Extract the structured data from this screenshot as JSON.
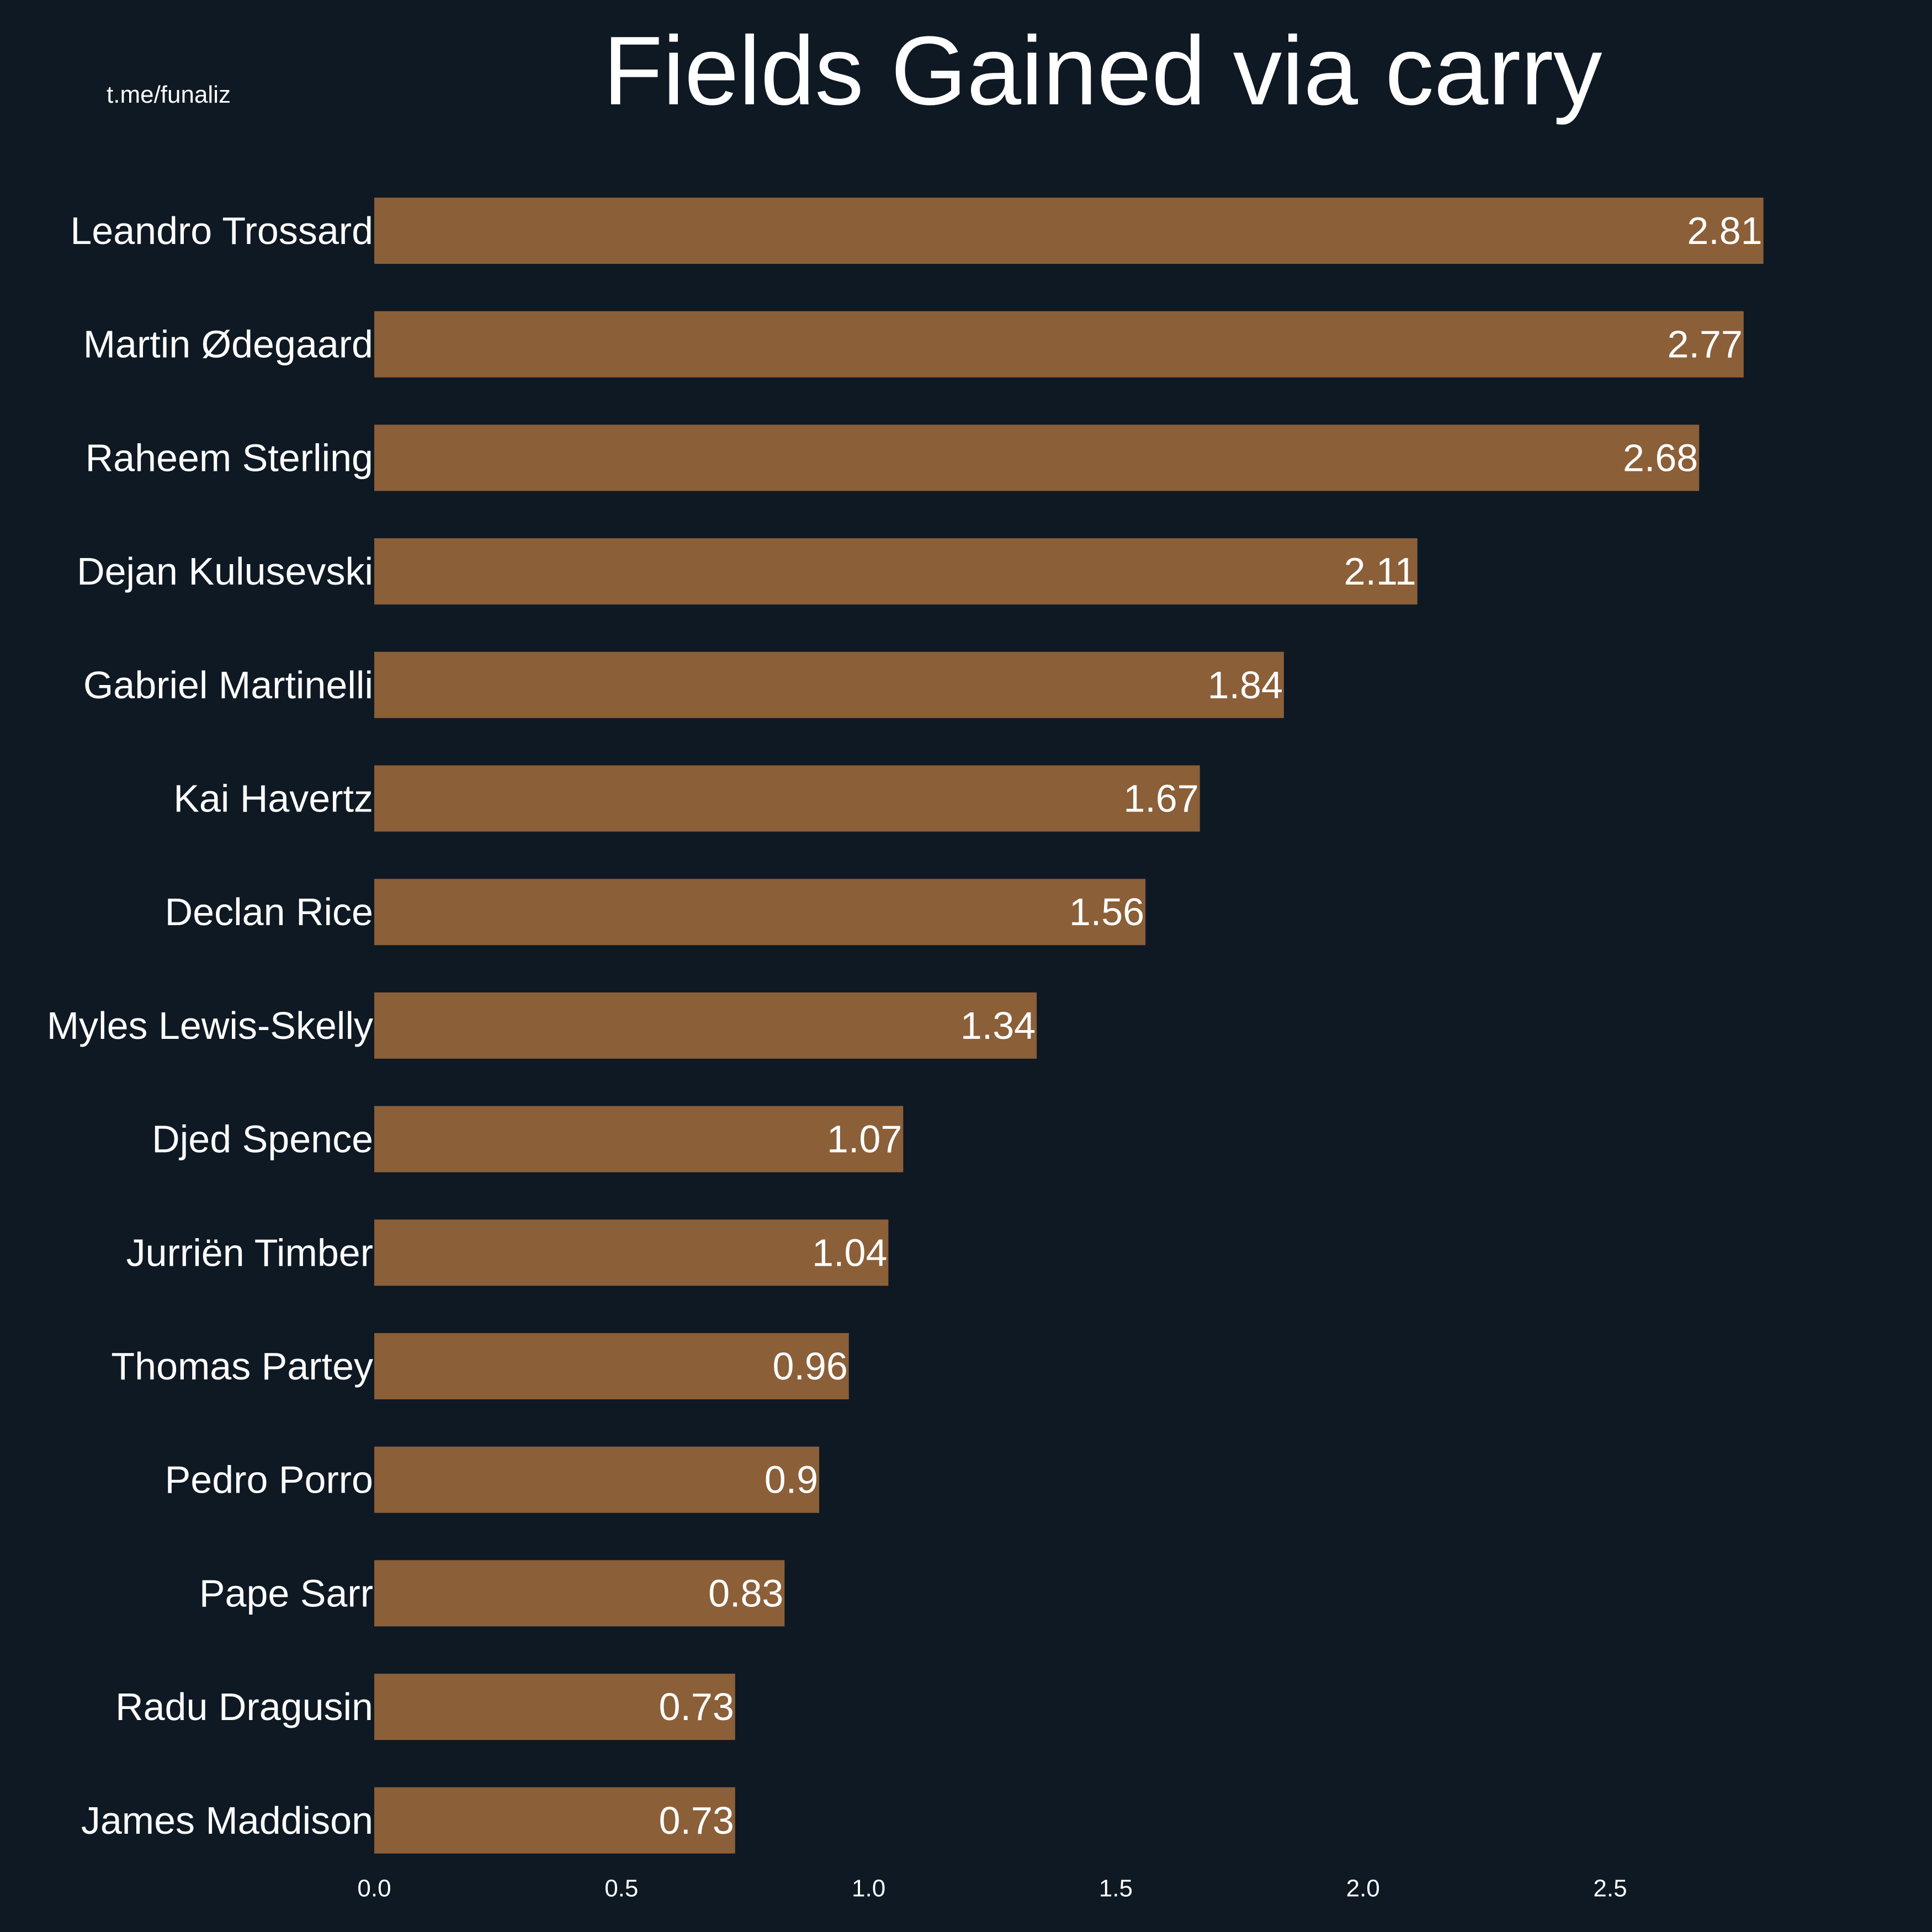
{
  "watermark": "t.me/funaliz",
  "chart_data": {
    "type": "bar",
    "orientation": "horizontal",
    "title": "Fields Gained via carry",
    "xlabel": "",
    "ylabel": "",
    "xlim": [
      0,
      2.95
    ],
    "xticks": [
      "0.0",
      "0.5",
      "1.0",
      "1.5",
      "2.0",
      "2.5"
    ],
    "xtick_values": [
      0,
      0.5,
      1.0,
      1.5,
      2.0,
      2.5
    ],
    "grid": false,
    "bar_color": "#8b5f38",
    "background_color": "#0f1923",
    "text_color": "#ffffff",
    "categories": [
      "Leandro Trossard",
      "Martin Ødegaard",
      "Raheem Sterling",
      "Dejan Kulusevski",
      "Gabriel Martinelli",
      "Kai Havertz",
      "Declan Rice",
      "Myles Lewis-Skelly",
      "Djed Spence",
      "Jurriën Timber",
      "Thomas Partey",
      "Pedro Porro",
      "Pape Sarr",
      "Radu Dragusin",
      "James Maddison"
    ],
    "values": [
      2.81,
      2.77,
      2.68,
      2.11,
      1.84,
      1.67,
      1.56,
      1.34,
      1.07,
      1.04,
      0.96,
      0.9,
      0.83,
      0.73,
      0.73
    ],
    "value_labels": [
      "2.81",
      "2.77",
      "2.68",
      "2.11",
      "1.84",
      "1.67",
      "1.56",
      "1.34",
      "1.07",
      "1.04",
      "0.96",
      "0.9",
      "0.83",
      "0.73",
      "0.73"
    ]
  }
}
